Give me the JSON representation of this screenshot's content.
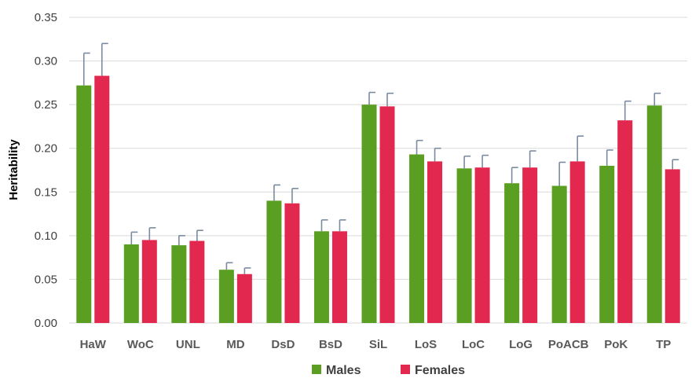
{
  "chart_data": {
    "type": "bar",
    "ylabel": "Heritability",
    "ylim": [
      0,
      0.35
    ],
    "yticks": [
      "0.00",
      "0.05",
      "0.10",
      "0.15",
      "0.20",
      "0.25",
      "0.30",
      "0.35"
    ],
    "grid": true,
    "legend_position": "bottom",
    "categories": [
      "HaW",
      "WoC",
      "UNL",
      "MD",
      "DsD",
      "BsD",
      "SiL",
      "LoS",
      "LoC",
      "LoG",
      "PoACB",
      "PoK",
      "TP"
    ],
    "series": [
      {
        "name": "Males",
        "color": "#5a9e22",
        "values": [
          0.272,
          0.09,
          0.089,
          0.061,
          0.14,
          0.105,
          0.25,
          0.193,
          0.177,
          0.16,
          0.157,
          0.18,
          0.249
        ],
        "errors": [
          0.037,
          0.014,
          0.011,
          0.008,
          0.018,
          0.013,
          0.014,
          0.016,
          0.014,
          0.018,
          0.027,
          0.018,
          0.014
        ]
      },
      {
        "name": "Females",
        "color": "#e3284f",
        "values": [
          0.283,
          0.095,
          0.094,
          0.056,
          0.137,
          0.105,
          0.248,
          0.185,
          0.178,
          0.178,
          0.185,
          0.232,
          0.176
        ],
        "errors": [
          0.037,
          0.014,
          0.012,
          0.007,
          0.017,
          0.013,
          0.015,
          0.015,
          0.014,
          0.019,
          0.029,
          0.022,
          0.011
        ]
      }
    ]
  }
}
